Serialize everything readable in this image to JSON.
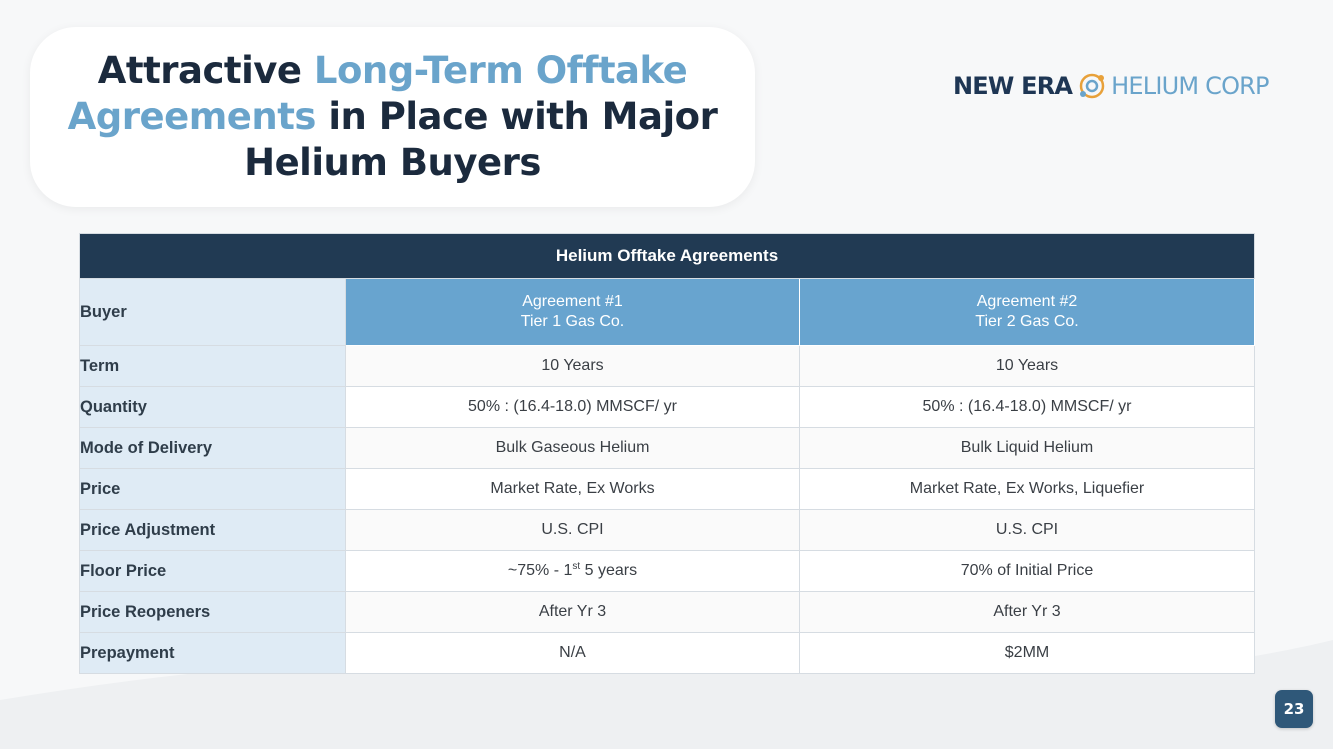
{
  "title": {
    "part1": "Attractive ",
    "accent1": "Long-Term Offtake",
    "accent2": "Agreements",
    "part2": " in Place with Major",
    "part3": "Helium Buyers"
  },
  "logo": {
    "word1": "NEW ERA",
    "word2": "HELIUM CORP"
  },
  "table": {
    "title": "Helium Offtake Agreements",
    "buyer_label": "Buyer",
    "agreements": [
      {
        "name": "Agreement #1",
        "buyer": "Tier 1 Gas Co."
      },
      {
        "name": "Agreement #2",
        "buyer": "Tier 2 Gas Co."
      }
    ],
    "rows": [
      {
        "label": "Term",
        "a1": "10 Years",
        "a2": "10 Years"
      },
      {
        "label": "Quantity",
        "a1": "50% : (16.4-18.0) MMSCF/ yr",
        "a2": "50% : (16.4-18.0) MMSCF/ yr"
      },
      {
        "label": "Mode of Delivery",
        "a1": "Bulk Gaseous Helium",
        "a2": "Bulk Liquid Helium"
      },
      {
        "label": "Price",
        "a1": "Market Rate, Ex Works",
        "a2": "Market Rate, Ex Works, Liquefier"
      },
      {
        "label": "Price Adjustment",
        "a1": "U.S. CPI",
        "a2": "U.S. CPI"
      },
      {
        "label": "Floor Price",
        "a1_pre": "~75% - 1",
        "a1_sup": "st",
        "a1_post": " 5 years",
        "a2": "70% of Initial Price"
      },
      {
        "label": "Price Reopeners",
        "a1": "After Yr 3",
        "a2": "After Yr 3"
      },
      {
        "label": "Prepayment",
        "a1": "N/A",
        "a2": "$2MM"
      }
    ]
  },
  "page_number": "23",
  "colors": {
    "navy": "#213a53",
    "accent_blue": "#6aa4cb",
    "header_blue": "#68a4cf",
    "label_bg": "#dfebf5",
    "logo_orange": "#e8a13a"
  }
}
